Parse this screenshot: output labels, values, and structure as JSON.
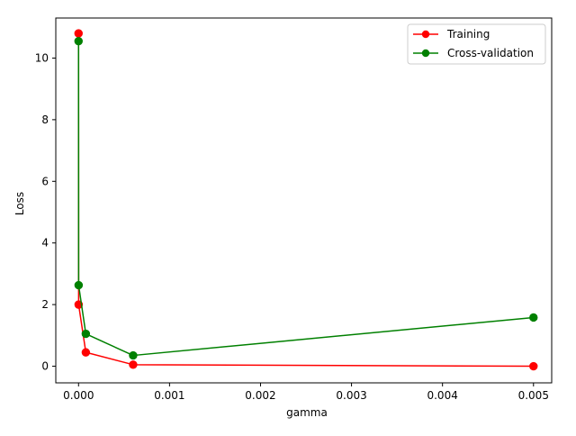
{
  "chart_data": {
    "type": "line",
    "title": "",
    "xlabel": "gamma",
    "ylabel": "Loss",
    "xlim": [
      -0.00025,
      0.0052
    ],
    "ylim": [
      -0.54,
      11.3
    ],
    "xticks": [
      0.0,
      0.001,
      0.002,
      0.003,
      0.004,
      0.005
    ],
    "xtick_labels": [
      "0.000",
      "0.001",
      "0.002",
      "0.003",
      "0.004",
      "0.005"
    ],
    "yticks": [
      0,
      2,
      4,
      6,
      8,
      10
    ],
    "ytick_labels": [
      "0",
      "2",
      "4",
      "6",
      "8",
      "10"
    ],
    "grid": false,
    "legend_position": "top-right",
    "series": [
      {
        "name": "Training",
        "color": "#ff0000",
        "marker": "circle",
        "points": [
          [
            0.0,
            10.8
          ],
          [
            1e-06,
            2.0
          ],
          [
            8e-05,
            0.45
          ],
          [
            0.0006,
            0.05
          ],
          [
            0.005,
            0.0
          ]
        ]
      },
      {
        "name": "Cross-validation",
        "color": "#008000",
        "marker": "circle",
        "points": [
          [
            0.0,
            10.55
          ],
          [
            1e-06,
            2.63
          ],
          [
            8e-05,
            1.05
          ],
          [
            0.0006,
            0.35
          ],
          [
            0.005,
            1.58
          ]
        ]
      }
    ]
  }
}
